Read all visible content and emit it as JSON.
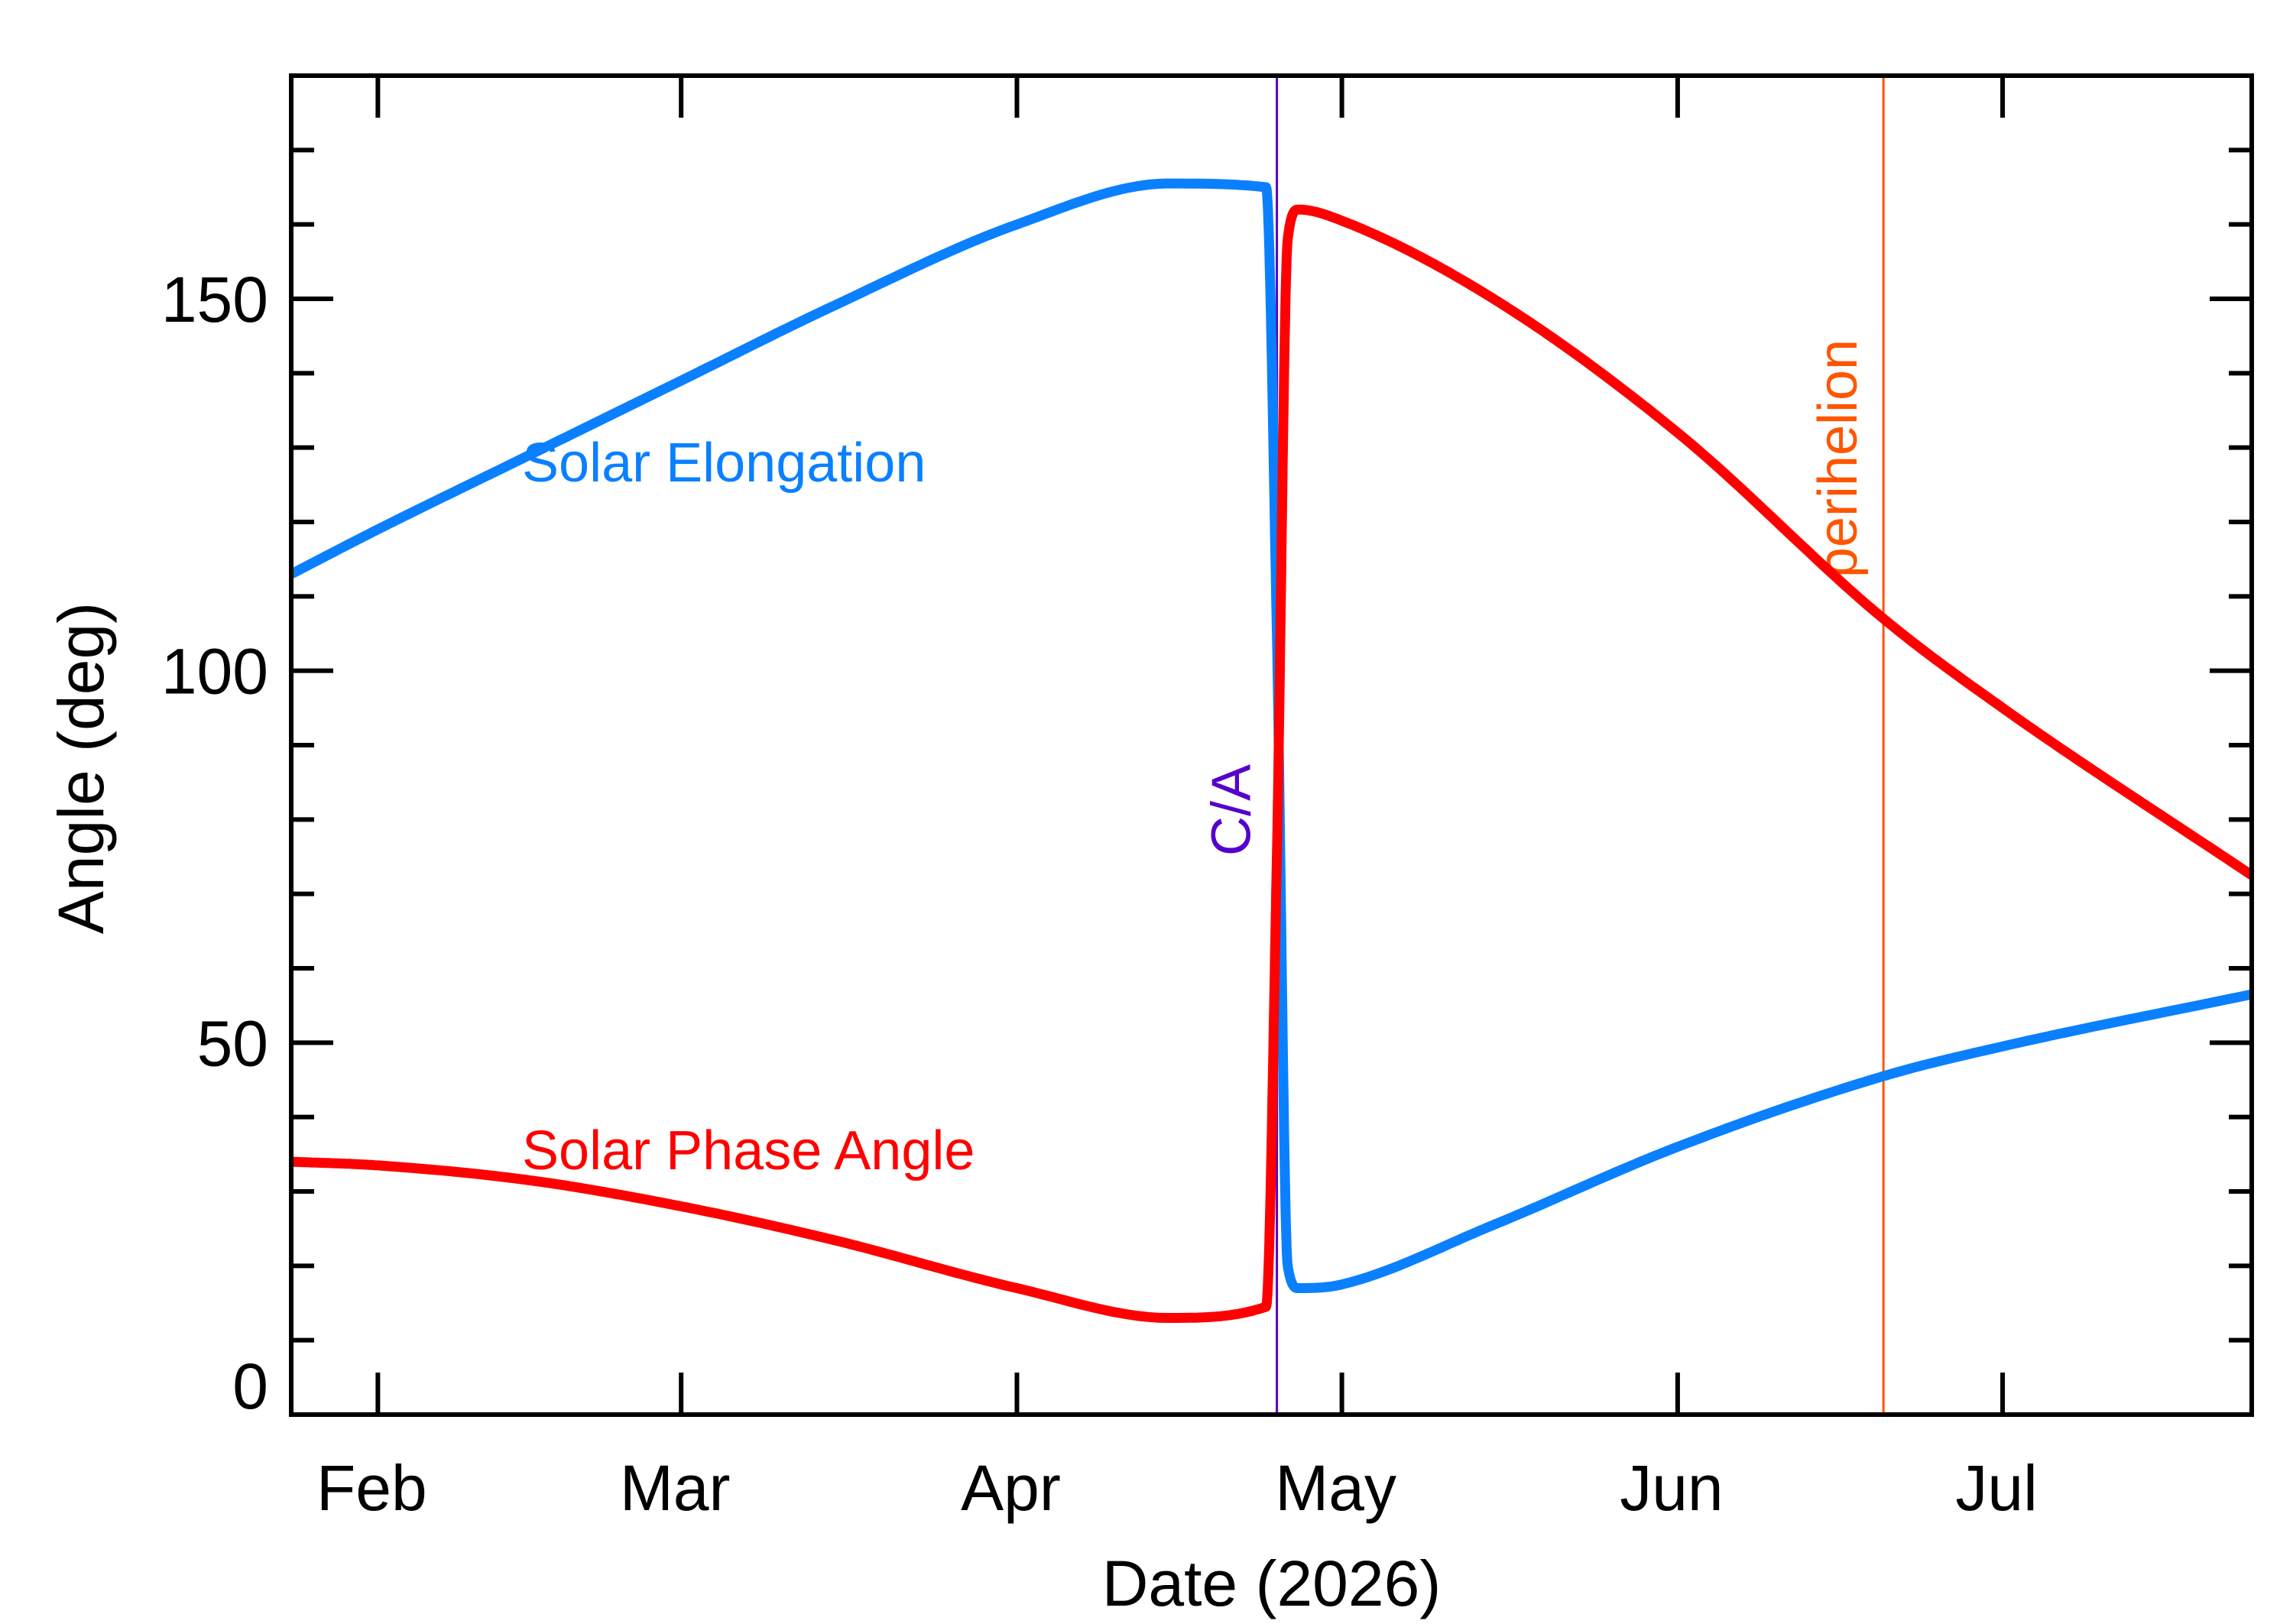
{
  "chart_data": {
    "type": "line",
    "xlabel": "Date (2026)",
    "ylabel": "Angle (deg)",
    "xlim": [
      "2026-01-24",
      "2026-07-24"
    ],
    "ylim": [
      0,
      180
    ],
    "x_tick_labels": [
      {
        "date": "2026-02-01",
        "label": "Feb"
      },
      {
        "date": "2026-03-01",
        "label": "Mar"
      },
      {
        "date": "2026-04-01",
        "label": "Apr"
      },
      {
        "date": "2026-05-01",
        "label": "May"
      },
      {
        "date": "2026-06-01",
        "label": "Jun"
      },
      {
        "date": "2026-07-01",
        "label": "Jul"
      }
    ],
    "y_tick_labels": [
      {
        "value": 0,
        "label": "0"
      },
      {
        "value": 50,
        "label": "50"
      },
      {
        "value": 100,
        "label": "100"
      },
      {
        "value": 150,
        "label": "150"
      }
    ],
    "y_minor_step": 10,
    "grid": false,
    "series": [
      {
        "name": "Solar Elongation",
        "color": "#0a80ff",
        "points": [
          [
            "2026-01-24",
            113
          ],
          [
            "2026-02-01",
            119
          ],
          [
            "2026-02-15",
            129
          ],
          [
            "2026-03-01",
            139
          ],
          [
            "2026-03-15",
            149
          ],
          [
            "2026-04-01",
            160
          ],
          [
            "2026-04-15",
            165.5
          ],
          [
            "2026-04-24",
            165
          ],
          [
            "2026-04-25",
            105
          ],
          [
            "2026-04-26",
            20
          ],
          [
            "2026-04-27",
            17
          ],
          [
            "2026-05-01",
            17.5
          ],
          [
            "2026-05-15",
            25.5
          ],
          [
            "2026-06-01",
            36
          ],
          [
            "2026-06-20",
            45.5
          ],
          [
            "2026-07-01",
            49.5
          ],
          [
            "2026-07-24",
            56.5
          ]
        ]
      },
      {
        "name": "Solar Phase Angle",
        "color": "#ff0000",
        "points": [
          [
            "2026-01-24",
            34
          ],
          [
            "2026-02-01",
            33.5
          ],
          [
            "2026-02-15",
            31.5
          ],
          [
            "2026-03-01",
            28
          ],
          [
            "2026-03-15",
            23.5
          ],
          [
            "2026-04-01",
            17
          ],
          [
            "2026-04-15",
            13
          ],
          [
            "2026-04-24",
            14.5
          ],
          [
            "2026-04-25",
            75
          ],
          [
            "2026-04-26",
            158
          ],
          [
            "2026-04-27",
            162
          ],
          [
            "2026-05-01",
            160.5
          ],
          [
            "2026-05-15",
            150
          ],
          [
            "2026-06-01",
            132
          ],
          [
            "2026-06-20",
            107
          ],
          [
            "2026-07-01",
            95
          ],
          [
            "2026-07-24",
            72.5
          ]
        ]
      }
    ],
    "vertical_markers": [
      {
        "label": "C/A",
        "date": "2026-04-25",
        "color": "#5500cc"
      },
      {
        "label": "perihelion",
        "date": "2026-06-20",
        "color": "#ff5500"
      }
    ]
  }
}
